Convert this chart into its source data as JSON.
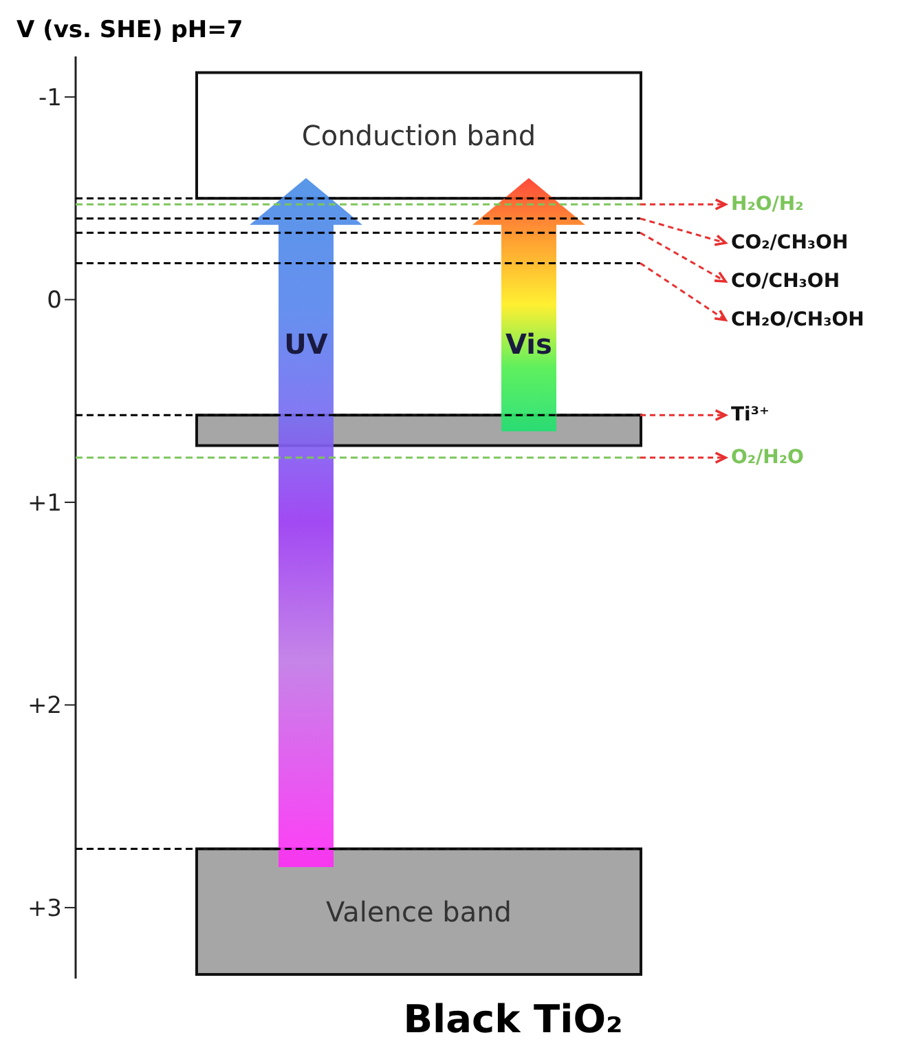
{
  "chart_data": {
    "type": "bar",
    "title": "Black TiO₂",
    "ylabel": "V (vs. SHE) pH=7",
    "categories": [
      null
    ],
    "series": [
      {
        "name": "Conduction band",
        "color": "#ffffff",
        "base": [
          -1.12
        ],
        "values": [
          0.62
        ]
      },
      {
        "color": "#a6a6a6",
        "base": [
          0.57
        ],
        "values": [
          0.15
        ]
      },
      {
        "name": "Valence band",
        "color": "#a6a6a6",
        "base": [
          2.71
        ],
        "values": [
          0.62
        ]
      }
    ],
    "ylim": [
      3.35,
      -1.2
    ],
    "yticks": [
      -1,
      0,
      {
        "value": 1,
        "label": "+1"
      },
      {
        "value": 2,
        "label": "+2"
      },
      {
        "value": 3,
        "label": "+3"
      }
    ],
    "grid": false,
    "ref_lines": [
      {
        "axis": "y",
        "value": -0.5,
        "label": null,
        "color": "#000000",
        "line_style": "dashed"
      },
      {
        "axis": "y",
        "value": -0.47,
        "label": "H₂O/H₂",
        "color": "#7cc55a",
        "line_style": "dashed"
      },
      {
        "axis": "y",
        "value": -0.4,
        "label": "CO₂/CH₃OH",
        "color": "#000000",
        "line_style": "dashed"
      },
      {
        "axis": "y",
        "value": -0.33,
        "label": "CO/CH₃OH",
        "color": "#000000",
        "line_style": "dashed"
      },
      {
        "axis": "y",
        "value": -0.18,
        "label": "CH₂O/CH₃OH",
        "color": "#000000",
        "line_style": "dashed"
      },
      {
        "axis": "y",
        "value": 0.57,
        "label": "Ti³⁺",
        "color": "#000000",
        "line_style": "dashed"
      },
      {
        "axis": "y",
        "value": 0.78,
        "label": "O₂/H₂O",
        "color": "#7cc55a",
        "line_style": "dashed"
      },
      {
        "axis": "y",
        "value": 2.71,
        "label": null,
        "color": "#000000",
        "line_style": "dashed"
      }
    ],
    "annotations": [
      "UV",
      "Vis"
    ]
  }
}
